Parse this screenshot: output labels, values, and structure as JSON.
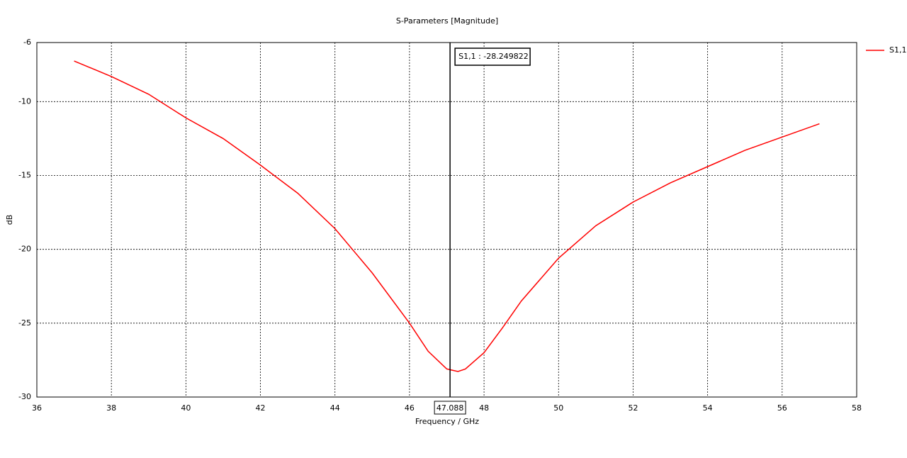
{
  "chart_data": {
    "type": "line",
    "title": "S-Parameters [Magnitude]",
    "x_label": "Frequency / GHz",
    "y_label": "dB",
    "x": [
      37,
      38,
      39,
      40,
      41,
      42,
      43,
      44,
      45,
      46,
      46.5,
      47,
      47.3,
      47.5,
      48,
      48.5,
      49,
      50,
      51,
      52,
      53,
      54,
      55,
      56,
      57
    ],
    "series": [
      {
        "name": "S1,1",
        "color": "#ff0000",
        "values": [
          -7.25,
          -8.3,
          -9.5,
          -11.1,
          -12.5,
          -14.3,
          -16.2,
          -18.6,
          -21.6,
          -25.0,
          -26.9,
          -28.1,
          -28.27,
          -28.1,
          -27.0,
          -25.3,
          -23.5,
          -20.6,
          -18.4,
          -16.8,
          -15.5,
          -14.4,
          -13.3,
          -12.4,
          -11.5
        ]
      }
    ],
    "xlim": [
      36,
      58
    ],
    "xticks": [
      36,
      38,
      40,
      42,
      44,
      46,
      48,
      50,
      52,
      54,
      56,
      58
    ],
    "ylim": [
      -30,
      -6
    ],
    "yticks": [
      -30,
      -25,
      -20,
      -15,
      -10,
      -6
    ],
    "grid": true,
    "legend": "right",
    "marker": {
      "x": 47.088,
      "label": "S1,1 : -28.249822"
    }
  }
}
